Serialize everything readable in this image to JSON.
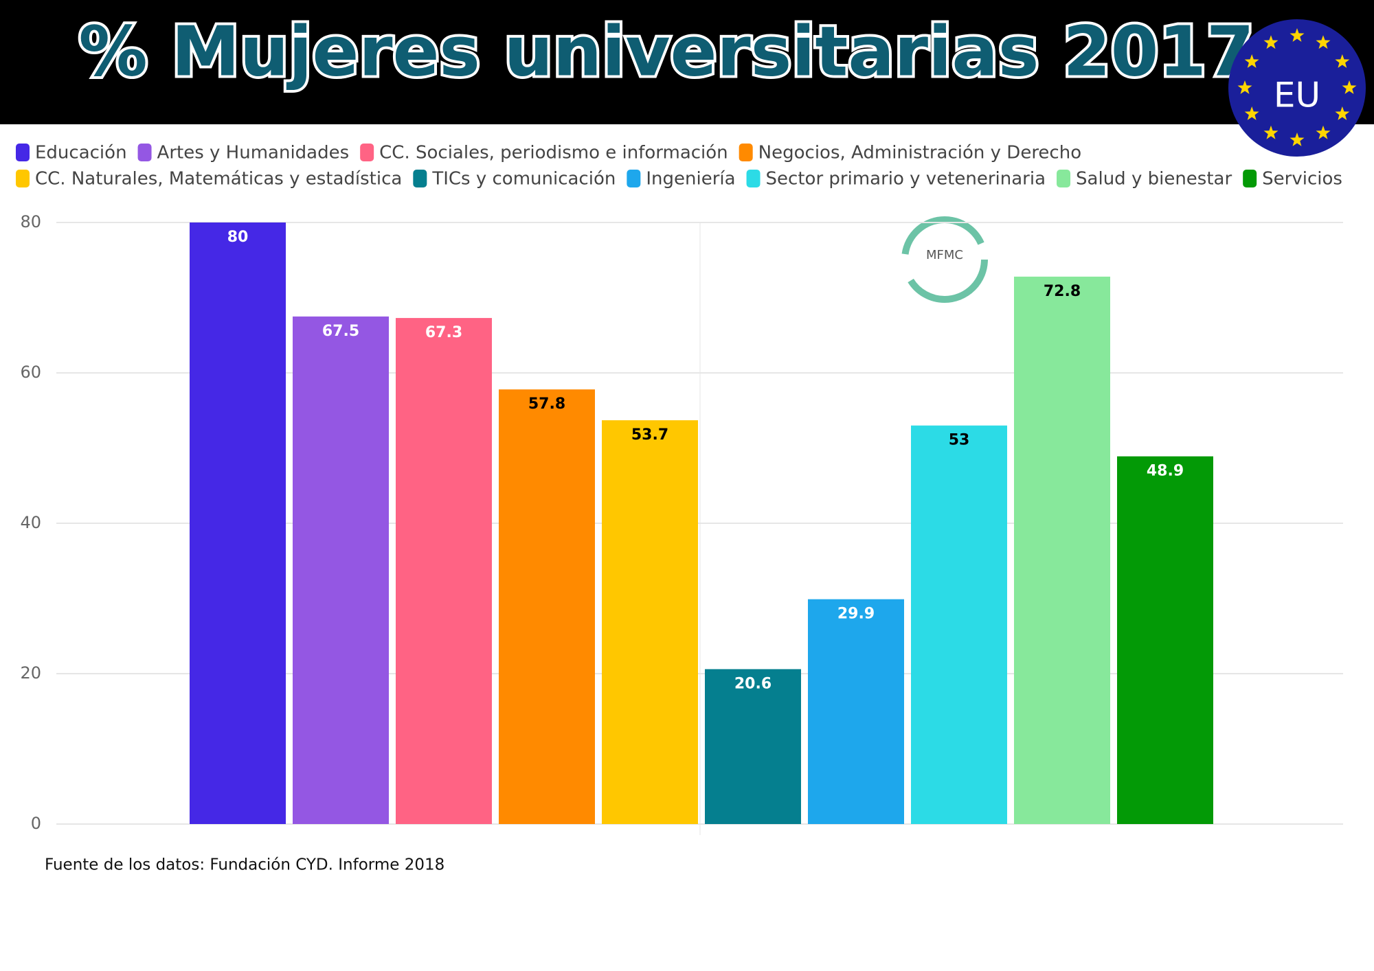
{
  "chart_data": {
    "type": "bar",
    "title": "% Mujeres universitarias 2017",
    "badge": "EU",
    "logo": "MFMC",
    "source": "Fuente de los datos: Fundación CYD. Informe 2018",
    "categories": [
      "Educación",
      "Artes y Humanidades",
      "CC. Sociales, periodismo e información",
      "Negocios, Administración y Derecho",
      "CC. Naturales, Matemáticas y estadística",
      "TICs y comunicación",
      "Ingeniería",
      "Sector primario y vetenerinaria",
      "Salud y bienestar",
      "Servicios"
    ],
    "values": [
      80,
      67.5,
      67.3,
      57.8,
      53.7,
      20.6,
      29.9,
      53,
      72.8,
      48.9
    ],
    "colors": [
      "#4528e6",
      "#9457e3",
      "#ff6384",
      "#ff8a00",
      "#ffc700",
      "#057f8f",
      "#1ea7ec",
      "#2cdbe6",
      "#87e89b",
      "#039a06"
    ],
    "label_colors": [
      "#ffffff",
      "#ffffff",
      "#ffffff",
      "#000000",
      "#000000",
      "#ffffff",
      "#ffffff",
      "#000000",
      "#000000",
      "#ffffff"
    ],
    "ylim": [
      0,
      80
    ],
    "yticks": [
      0,
      20,
      40,
      60,
      80
    ],
    "grid": true
  }
}
